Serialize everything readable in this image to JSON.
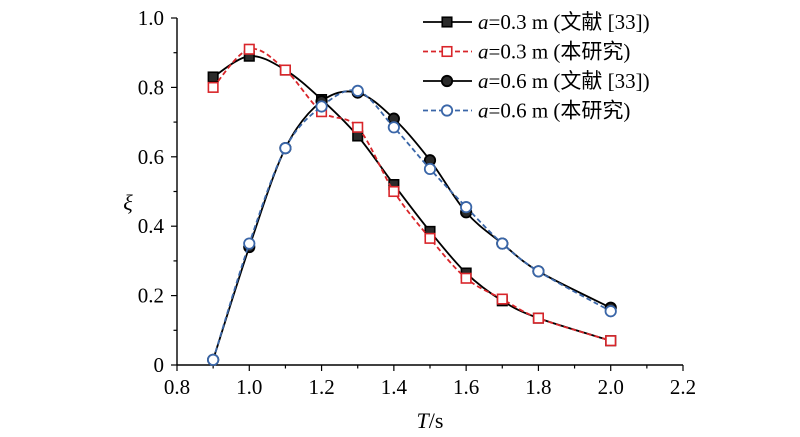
{
  "chart_data": {
    "type": "line",
    "xlabel": "T/s",
    "xlabel_italic": "T",
    "xlabel_rest": "/s",
    "ylabel": "ξ",
    "xlim": [
      0.8,
      2.2
    ],
    "ylim": [
      0,
      1.0
    ],
    "xticks": [
      "0.8",
      "1.0",
      "1.2",
      "1.4",
      "1.6",
      "1.8",
      "2.0",
      "2.2"
    ],
    "yticks": [
      "0",
      "0.2",
      "0.4",
      "0.6",
      "0.8",
      "1.0"
    ],
    "grid": false,
    "legend_position": "top-right",
    "series": [
      {
        "name": "a=0.3 m (文献 [33])",
        "name_italic": "a",
        "name_rest": "=0.3 m (文献 [33])",
        "color": "#000000",
        "line": "solid",
        "marker": "square-filled",
        "x": [
          0.9,
          1.0,
          1.1,
          1.2,
          1.3,
          1.4,
          1.5,
          1.6,
          1.7,
          1.8,
          2.0
        ],
        "y": [
          0.83,
          0.89,
          0.85,
          0.765,
          0.66,
          0.52,
          0.385,
          0.265,
          0.185,
          0.135,
          0.07
        ]
      },
      {
        "name": "a=0.3 m (本研究)",
        "name_italic": "a",
        "name_rest": "=0.3 m (本研究)",
        "color": "#d9252a",
        "line": "dashed",
        "marker": "square-open",
        "x": [
          0.9,
          1.0,
          1.1,
          1.2,
          1.3,
          1.4,
          1.5,
          1.6,
          1.7,
          1.8,
          2.0
        ],
        "y": [
          0.8,
          0.91,
          0.85,
          0.73,
          0.685,
          0.5,
          0.365,
          0.25,
          0.19,
          0.135,
          0.07
        ]
      },
      {
        "name": "a=0.6 m (文献 [33])",
        "name_italic": "a",
        "name_rest": "=0.6 m (文献 [33])",
        "color": "#000000",
        "line": "solid",
        "marker": "circle-filled",
        "x": [
          0.9,
          1.0,
          1.1,
          1.2,
          1.3,
          1.4,
          1.5,
          1.6,
          1.7,
          1.8,
          2.0
        ],
        "y": [
          0.015,
          0.34,
          0.625,
          0.76,
          0.785,
          0.71,
          0.59,
          0.44,
          0.35,
          0.27,
          0.165
        ]
      },
      {
        "name": "a=0.6 m (本研究)",
        "name_italic": "a",
        "name_rest": "=0.6 m (本研究)",
        "color": "#3a66a8",
        "line": "dashed",
        "marker": "circle-open",
        "x": [
          0.9,
          1.0,
          1.1,
          1.2,
          1.3,
          1.4,
          1.5,
          1.6,
          1.7,
          1.8,
          2.0
        ],
        "y": [
          0.015,
          0.35,
          0.625,
          0.745,
          0.79,
          0.685,
          0.565,
          0.455,
          0.35,
          0.27,
          0.155
        ]
      }
    ]
  }
}
